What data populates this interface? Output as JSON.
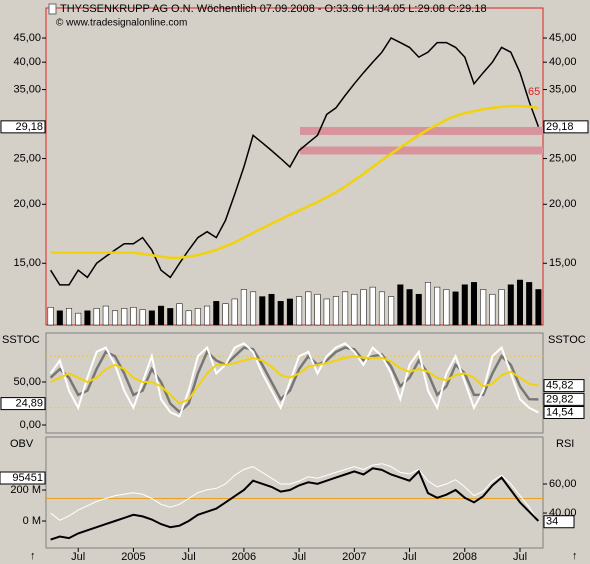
{
  "chart_data": [
    {
      "type": "line",
      "title": "THYSSENKRUPP AG O.N. Wöchentlich  07.09.2008 - O:33.96 H:34.05 L:29.08 C:29.18",
      "watermark": "© www.tradesignalonline.com",
      "annotation": "65",
      "log_scale": true,
      "categories": [
        null,
        null,
        null,
        "Jul",
        null,
        null,
        null,
        null,
        null,
        "2005",
        null,
        null,
        null,
        null,
        null,
        "Jul",
        null,
        null,
        null,
        null,
        null,
        "2006",
        null,
        null,
        null,
        null,
        null,
        "Jul",
        null,
        null,
        null,
        null,
        null,
        "2007",
        null,
        null,
        null,
        null,
        null,
        "Jul",
        null,
        null,
        null,
        null,
        null,
        "2008",
        null,
        null,
        null,
        null,
        null,
        "Jul",
        null,
        null
      ],
      "ylim": [
        11.1,
        52.1
      ],
      "yticks": [
        {
          "value": 15,
          "label": "15,00"
        },
        {
          "value": 20,
          "label": "20,00"
        },
        {
          "value": 25,
          "label": "25,00"
        },
        {
          "value": 35,
          "label": "35,00"
        },
        {
          "value": 40,
          "label": "40,00"
        },
        {
          "value": 45,
          "label": "45,00"
        }
      ],
      "support_zones": [
        28.6,
        26.0
      ],
      "zone_color": "#d9939c",
      "series": [
        {
          "color": "#000000",
          "last_label": "29,18",
          "values": [
            14.5,
            13.5,
            13.5,
            14.5,
            14.0,
            15.0,
            15.5,
            16.0,
            16.5,
            16.5,
            17.0,
            16.0,
            14.5,
            14.0,
            15.0,
            16.0,
            17.0,
            17.5,
            17.0,
            18.5,
            21.0,
            24,
            28,
            27,
            26,
            25,
            24,
            26,
            27,
            28,
            31,
            32,
            34,
            36,
            38,
            40,
            42,
            45,
            44,
            43,
            41,
            42,
            44,
            44,
            43,
            41,
            36,
            38,
            40,
            43,
            42,
            38,
            33,
            29.18
          ]
        },
        {
          "color": "#f2d20a",
          "values": [
            15.8,
            15.8,
            15.8,
            15.8,
            15.8,
            15.8,
            15.8,
            15.8,
            15.8,
            15.8,
            15.7,
            15.6,
            15.5,
            15.4,
            15.4,
            15.5,
            15.6,
            15.8,
            16.0,
            16.3,
            16.6,
            17.0,
            17.4,
            17.8,
            18.2,
            18.6,
            19.0,
            19.4,
            19.8,
            20.2,
            20.7,
            21.2,
            21.8,
            22.5,
            23.2,
            24,
            24.8,
            25.6,
            26.4,
            27.2,
            28,
            28.8,
            29.5,
            30.2,
            30.8,
            31.2,
            31.5,
            31.8,
            32,
            32.2,
            32.3,
            32.3,
            32.2,
            32.0
          ]
        }
      ],
      "volume": [
        15,
        12,
        14,
        10,
        12,
        14,
        16,
        12,
        14,
        15,
        13,
        12,
        16,
        14,
        18,
        12,
        14,
        16,
        20,
        18,
        22,
        30,
        28,
        24,
        26,
        20,
        22,
        24,
        28,
        26,
        22,
        24,
        28,
        26,
        30,
        32,
        28,
        24,
        34,
        30,
        26,
        36,
        32,
        30,
        28,
        34,
        36,
        30,
        26,
        30,
        34,
        38,
        36,
        30
      ]
    },
    {
      "type": "line",
      "panel_label": "SSTOC",
      "ylim": [
        -9.3,
        107
      ],
      "yticks": [
        {
          "value": 0,
          "label": "0,00"
        },
        {
          "value": 50,
          "label": "50,00"
        }
      ],
      "levels": [
        80,
        20
      ],
      "level_color": "#e8c84a",
      "marker_label": {
        "value": 24.89,
        "label": "24,89"
      },
      "series": [
        {
          "color": "#777777",
          "last_label": "29,82",
          "values": [
            55,
            65,
            55,
            35,
            40,
            65,
            85,
            80,
            60,
            35,
            40,
            65,
            50,
            25,
            15,
            25,
            60,
            85,
            75,
            70,
            80,
            90,
            88,
            70,
            50,
            30,
            40,
            65,
            80,
            70,
            75,
            85,
            90,
            88,
            75,
            80,
            82,
            68,
            45,
            55,
            75,
            60,
            35,
            45,
            70,
            60,
            35,
            35,
            60,
            80,
            70,
            45,
            30,
            29.82
          ]
        },
        {
          "color": "#ffffff",
          "last_label": "14,54",
          "values": [
            60,
            75,
            40,
            20,
            55,
            85,
            90,
            70,
            40,
            20,
            50,
            80,
            30,
            15,
            10,
            40,
            80,
            90,
            60,
            70,
            90,
            95,
            85,
            60,
            40,
            20,
            50,
            80,
            85,
            60,
            80,
            90,
            95,
            85,
            70,
            90,
            80,
            60,
            30,
            70,
            85,
            40,
            20,
            60,
            80,
            50,
            20,
            40,
            80,
            90,
            60,
            30,
            20,
            14.54
          ]
        },
        {
          "color": "#f2d20a",
          "last_label": "45,82",
          "values": [
            50,
            55,
            60,
            55,
            50,
            55,
            65,
            70,
            65,
            55,
            50,
            50,
            45,
            35,
            25,
            30,
            45,
            60,
            70,
            70,
            72,
            75,
            78,
            75,
            68,
            58,
            55,
            60,
            68,
            70,
            72,
            75,
            78,
            80,
            78,
            78,
            78,
            74,
            66,
            62,
            65,
            62,
            55,
            52,
            58,
            60,
            55,
            45,
            48,
            58,
            62,
            55,
            48,
            45.82
          ]
        }
      ]
    },
    {
      "type": "line",
      "panel_label": "OBV",
      "panel_label_right": "RSI",
      "obv_label": "95451",
      "ylim": [
        -174,
        542
      ],
      "yticks": [
        {
          "value": 0,
          "label": "0 M"
        },
        {
          "value": 200,
          "label": "200 M"
        }
      ],
      "y2lim": [
        15.9,
        92.4
      ],
      "y2ticks": [
        {
          "value": 40,
          "label": "40,00"
        },
        {
          "value": 60,
          "label": "60,00"
        }
      ],
      "level": 50,
      "level_color": "#e8a020",
      "series": [
        {
          "color": "#ffffff",
          "axis": "y2",
          "last_label": "34",
          "values": [
            40,
            35,
            38,
            42,
            45,
            48,
            50,
            52,
            53,
            54,
            53,
            50,
            46,
            44,
            46,
            50,
            54,
            56,
            57,
            60,
            66,
            70,
            72,
            68,
            64,
            60,
            60,
            62,
            65,
            64,
            66,
            68,
            70,
            72,
            70,
            73,
            74,
            72,
            68,
            67,
            70,
            62,
            58,
            60,
            63,
            58,
            52,
            55,
            62,
            66,
            60,
            52,
            44,
            34
          ]
        },
        {
          "color": "#000000",
          "values": [
            -120,
            -100,
            -110,
            -80,
            -60,
            -40,
            -20,
            0,
            20,
            40,
            30,
            10,
            -20,
            -40,
            -30,
            0,
            40,
            60,
            80,
            120,
            160,
            200,
            260,
            240,
            220,
            190,
            200,
            230,
            250,
            240,
            260,
            280,
            300,
            320,
            300,
            340,
            330,
            300,
            280,
            260,
            320,
            180,
            150,
            170,
            200,
            150,
            120,
            160,
            230,
            280,
            200,
            120,
            60,
            0
          ]
        }
      ]
    }
  ]
}
